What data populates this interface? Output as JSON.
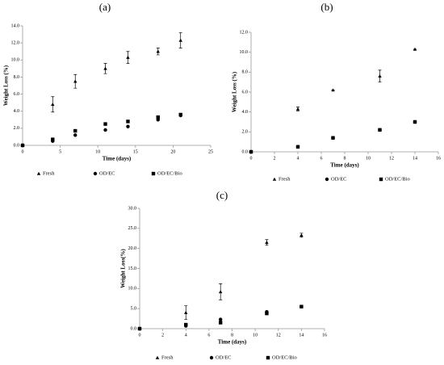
{
  "chart_data": [
    {
      "type": "scatter",
      "title": "(a)",
      "x_label": "Time (days)",
      "y_label": "Weight Loss (%)",
      "x": [
        0,
        4,
        7,
        11,
        14,
        18,
        21
      ],
      "series": [
        {
          "name": "Fresh",
          "color": "#000000",
          "marker": "triangle",
          "values": [
            0,
            4.8,
            7.5,
            9.0,
            10.3,
            11.0,
            12.3
          ],
          "errors": [
            0,
            0.9,
            0.8,
            0.6,
            0.7,
            0.4,
            0.9
          ]
        },
        {
          "name": "OD/EC",
          "color": "#000000",
          "marker": "circle",
          "values": [
            0,
            0.5,
            1.2,
            1.8,
            2.2,
            3.0,
            3.5
          ]
        },
        {
          "name": "OD/EC/Bio",
          "color": "#000000",
          "marker": "square",
          "values": [
            0,
            0.7,
            1.7,
            2.5,
            2.8,
            3.3,
            3.6
          ]
        }
      ],
      "xlim": [
        0,
        25
      ],
      "xticks": [
        0,
        5,
        10,
        15,
        20,
        25
      ],
      "ylim": [
        0,
        14
      ],
      "yticks": [
        {
          "value": 0,
          "label": "0.0"
        },
        {
          "value": 2,
          "label": "2.0"
        },
        {
          "value": 4,
          "label": "4.0"
        },
        {
          "value": 6,
          "label": "6.0"
        },
        {
          "value": 8,
          "label": "8.0"
        },
        {
          "value": 10,
          "label": "10.0"
        },
        {
          "value": 12,
          "label": "12.0"
        },
        {
          "value": 14,
          "label": "14.0"
        }
      ]
    },
    {
      "type": "scatter",
      "title": "(b)",
      "x_label": "Time (days)",
      "y_label": "Weight Loss (%)",
      "x": [
        0,
        4,
        7,
        11,
        14
      ],
      "series": [
        {
          "name": "Fresh",
          "color": "#000000",
          "marker": "triangle",
          "values": [
            0,
            4.3,
            6.2,
            7.6,
            10.3
          ],
          "errors": [
            0,
            0.2,
            0,
            0.6,
            0
          ]
        },
        {
          "name": "OD/EC",
          "color": "#000000",
          "marker": "circle",
          "values": [
            0,
            0.5,
            1.4,
            2.2,
            3.0
          ]
        },
        {
          "name": "OD/EC/Bio",
          "color": "#000000",
          "marker": "square",
          "values": [
            0,
            0.5,
            1.4,
            2.2,
            3.0
          ]
        }
      ],
      "xlim": [
        0,
        16
      ],
      "xticks": [
        0,
        2,
        4,
        6,
        8,
        10,
        12,
        14,
        16
      ],
      "ylim": [
        0,
        12
      ],
      "yticks": [
        {
          "value": 0,
          "label": "0.0"
        },
        {
          "value": 2,
          "label": "2.0"
        },
        {
          "value": 4,
          "label": "4.0"
        },
        {
          "value": 6,
          "label": "6.0"
        },
        {
          "value": 8,
          "label": "8.0"
        },
        {
          "value": 10,
          "label": "10.0"
        },
        {
          "value": 12,
          "label": "12.0"
        }
      ]
    },
    {
      "type": "scatter",
      "title": "(c)",
      "x_label": "Time (days)",
      "y_label": "Weight Loss(%)",
      "x": [
        0,
        4,
        7,
        11,
        14
      ],
      "series": [
        {
          "name": "Fresh",
          "color": "#000000",
          "marker": "triangle",
          "values": [
            0,
            4.0,
            9.2,
            21.5,
            23.3
          ],
          "errors": [
            0,
            1.7,
            2.0,
            0.7,
            0.5
          ]
        },
        {
          "name": "OD/EC",
          "color": "#000000",
          "marker": "circle",
          "values": [
            0,
            0.7,
            2.3,
            4.2,
            5.5
          ]
        },
        {
          "name": "OD/EC/Bio",
          "color": "#000000",
          "marker": "square",
          "values": [
            0,
            1.0,
            1.5,
            3.8,
            5.5
          ]
        }
      ],
      "xlim": [
        0,
        16
      ],
      "xticks": [
        0,
        2,
        4,
        6,
        8,
        10,
        12,
        14,
        16
      ],
      "ylim": [
        0,
        30
      ],
      "yticks": [
        {
          "value": 0,
          "label": "0.0"
        },
        {
          "value": 5,
          "label": "5.0"
        },
        {
          "value": 10,
          "label": "10.0"
        },
        {
          "value": 15,
          "label": "15.0"
        },
        {
          "value": 20,
          "label": "20.0"
        },
        {
          "value": 25,
          "label": "25.0"
        },
        {
          "value": 30,
          "label": "30.0"
        }
      ]
    }
  ]
}
